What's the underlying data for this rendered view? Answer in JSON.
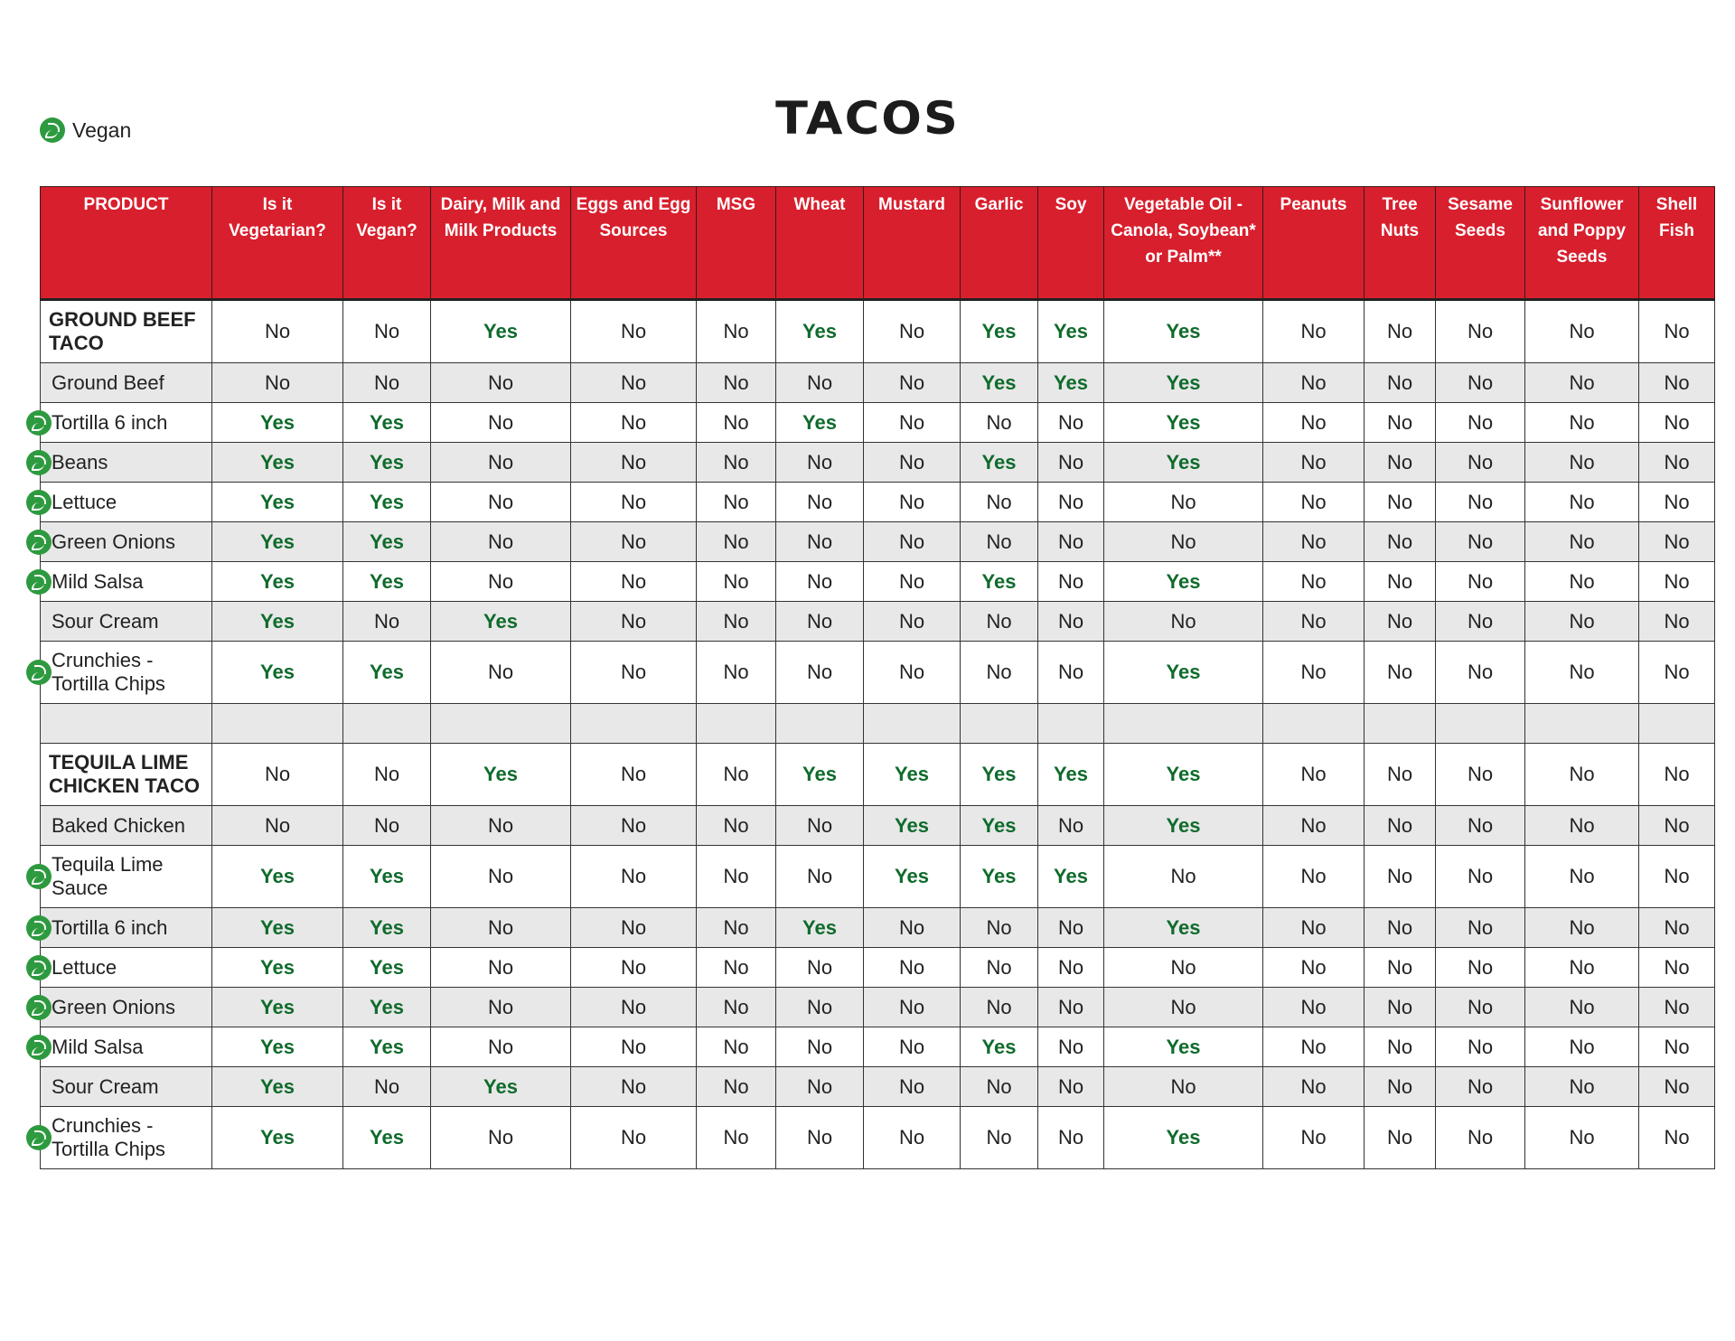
{
  "title": "TACOS",
  "legend": {
    "icon": "vegan-leaf-icon",
    "label": "Vegan"
  },
  "colors": {
    "header_bg": "#d81f2d",
    "yes_text": "#0f6b2c",
    "alt_row_bg": "#e8e8e8",
    "vegan_icon": "#2e9a3f"
  },
  "columns": [
    "PRODUCT",
    "Is it Vegetarian?",
    "Is it Vegan?",
    "Dairy, Milk and Milk Products",
    "Eggs and Egg Sources",
    "MSG",
    "Wheat",
    "Mustard",
    "Garlic",
    "Soy",
    "Vegetable Oil - Canola, Soybean* or Palm**",
    "Peanuts",
    "Tree Nuts",
    "Sesame Seeds",
    "Sunflower and Poppy Seeds",
    "Shell Fish"
  ],
  "rows": [
    {
      "name": "GROUND BEEF TACO",
      "group": true,
      "vegan": false,
      "values": [
        "No",
        "No",
        "Yes",
        "No",
        "No",
        "Yes",
        "No",
        "Yes",
        "Yes",
        "Yes",
        "No",
        "No",
        "No",
        "No",
        "No"
      ]
    },
    {
      "name": "Ground Beef",
      "group": false,
      "vegan": false,
      "values": [
        "No",
        "No",
        "No",
        "No",
        "No",
        "No",
        "No",
        "Yes",
        "Yes",
        "Yes",
        "No",
        "No",
        "No",
        "No",
        "No"
      ]
    },
    {
      "name": "Tortilla 6 inch",
      "group": false,
      "vegan": true,
      "values": [
        "Yes",
        "Yes",
        "No",
        "No",
        "No",
        "Yes",
        "No",
        "No",
        "No",
        "Yes",
        "No",
        "No",
        "No",
        "No",
        "No"
      ]
    },
    {
      "name": "Beans",
      "group": false,
      "vegan": true,
      "values": [
        "Yes",
        "Yes",
        "No",
        "No",
        "No",
        "No",
        "No",
        "Yes",
        "No",
        "Yes",
        "No",
        "No",
        "No",
        "No",
        "No"
      ]
    },
    {
      "name": "Lettuce",
      "group": false,
      "vegan": true,
      "values": [
        "Yes",
        "Yes",
        "No",
        "No",
        "No",
        "No",
        "No",
        "No",
        "No",
        "No",
        "No",
        "No",
        "No",
        "No",
        "No"
      ]
    },
    {
      "name": "Green Onions",
      "group": false,
      "vegan": true,
      "values": [
        "Yes",
        "Yes",
        "No",
        "No",
        "No",
        "No",
        "No",
        "No",
        "No",
        "No",
        "No",
        "No",
        "No",
        "No",
        "No"
      ]
    },
    {
      "name": "Mild Salsa",
      "group": false,
      "vegan": true,
      "values": [
        "Yes",
        "Yes",
        "No",
        "No",
        "No",
        "No",
        "No",
        "Yes",
        "No",
        "Yes",
        "No",
        "No",
        "No",
        "No",
        "No"
      ]
    },
    {
      "name": "Sour Cream",
      "group": false,
      "vegan": false,
      "values": [
        "Yes",
        "No",
        "Yes",
        "No",
        "No",
        "No",
        "No",
        "No",
        "No",
        "No",
        "No",
        "No",
        "No",
        "No",
        "No"
      ]
    },
    {
      "name": "Crunchies - Tortilla Chips",
      "group": false,
      "vegan": true,
      "values": [
        "Yes",
        "Yes",
        "No",
        "No",
        "No",
        "No",
        "No",
        "No",
        "No",
        "Yes",
        "No",
        "No",
        "No",
        "No",
        "No"
      ]
    },
    {
      "name": "",
      "group": false,
      "vegan": false,
      "blank": true,
      "values": [
        "",
        "",
        "",
        "",
        "",
        "",
        "",
        "",
        "",
        "",
        "",
        "",
        "",
        "",
        ""
      ]
    },
    {
      "name": "TEQUILA LIME CHICKEN TACO",
      "group": true,
      "vegan": false,
      "values": [
        "No",
        "No",
        "Yes",
        "No",
        "No",
        "Yes",
        "Yes",
        "Yes",
        "Yes",
        "Yes",
        "No",
        "No",
        "No",
        "No",
        "No"
      ]
    },
    {
      "name": "Baked Chicken",
      "group": false,
      "vegan": false,
      "values": [
        "No",
        "No",
        "No",
        "No",
        "No",
        "No",
        "Yes",
        "Yes",
        "No",
        "Yes",
        "No",
        "No",
        "No",
        "No",
        "No"
      ]
    },
    {
      "name": "Tequila Lime Sauce",
      "group": false,
      "vegan": true,
      "values": [
        "Yes",
        "Yes",
        "No",
        "No",
        "No",
        "No",
        "Yes",
        "Yes",
        "Yes",
        "No",
        "No",
        "No",
        "No",
        "No",
        "No"
      ]
    },
    {
      "name": "Tortilla 6 inch",
      "group": false,
      "vegan": true,
      "values": [
        "Yes",
        "Yes",
        "No",
        "No",
        "No",
        "Yes",
        "No",
        "No",
        "No",
        "Yes",
        "No",
        "No",
        "No",
        "No",
        "No"
      ]
    },
    {
      "name": "Lettuce",
      "group": false,
      "vegan": true,
      "values": [
        "Yes",
        "Yes",
        "No",
        "No",
        "No",
        "No",
        "No",
        "No",
        "No",
        "No",
        "No",
        "No",
        "No",
        "No",
        "No"
      ]
    },
    {
      "name": "Green Onions",
      "group": false,
      "vegan": true,
      "values": [
        "Yes",
        "Yes",
        "No",
        "No",
        "No",
        "No",
        "No",
        "No",
        "No",
        "No",
        "No",
        "No",
        "No",
        "No",
        "No"
      ]
    },
    {
      "name": "Mild Salsa",
      "group": false,
      "vegan": true,
      "values": [
        "Yes",
        "Yes",
        "No",
        "No",
        "No",
        "No",
        "No",
        "Yes",
        "No",
        "Yes",
        "No",
        "No",
        "No",
        "No",
        "No"
      ]
    },
    {
      "name": "Sour Cream",
      "group": false,
      "vegan": false,
      "values": [
        "Yes",
        "No",
        "Yes",
        "No",
        "No",
        "No",
        "No",
        "No",
        "No",
        "No",
        "No",
        "No",
        "No",
        "No",
        "No"
      ]
    },
    {
      "name": "Crunchies - Tortilla Chips",
      "group": false,
      "vegan": true,
      "values": [
        "Yes",
        "Yes",
        "No",
        "No",
        "No",
        "No",
        "No",
        "No",
        "No",
        "Yes",
        "No",
        "No",
        "No",
        "No",
        "No"
      ]
    }
  ]
}
